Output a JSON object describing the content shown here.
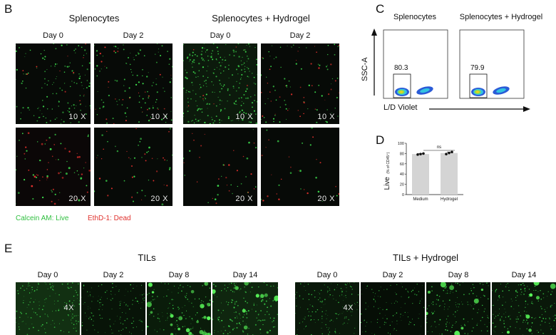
{
  "panels": {
    "B": {
      "letter": "B",
      "groups": [
        {
          "title": "Splenocytes",
          "days": [
            "Day 0",
            "Day 2"
          ]
        },
        {
          "title": "Splenocytes + Hydrogel",
          "days": [
            "Day 0",
            "Day 2"
          ]
        }
      ],
      "magnifications": [
        "10 X",
        "20 X"
      ],
      "legend": {
        "live": "Calcein AM: Live",
        "dead": "EthD-1: Dead"
      },
      "colors": {
        "live": "#2fbf3f",
        "dead": "#e0322e"
      }
    },
    "C": {
      "letter": "C",
      "titles": [
        "Splenocytes",
        "Splenocytes + Hydrogel"
      ],
      "gate_values": [
        "80.3",
        "79.9"
      ],
      "y_axis": "SSC-A",
      "x_axis": "L/D Violet"
    },
    "D": {
      "letter": "D",
      "ylabel": "Live",
      "ylabel_sub": "(% of CD45⁺)",
      "significance": "ns",
      "chart_data": {
        "type": "bar",
        "categories": [
          "Medium",
          "Hydrogel"
        ],
        "values": [
          79,
          81
        ],
        "points": [
          [
            78,
            79,
            80
          ],
          [
            79,
            81,
            83
          ]
        ],
        "ylim": [
          0,
          100
        ],
        "yticks": [
          "0",
          "20",
          "40",
          "60",
          "80",
          "100"
        ],
        "bar_color": "#d4d4d4"
      }
    },
    "E": {
      "letter": "E",
      "groups": [
        {
          "title": "TILs",
          "days": [
            "Day 0",
            "Day 2",
            "Day 8",
            "Day 14"
          ]
        },
        {
          "title": "TILs + Hydrogel",
          "days": [
            "Day 0",
            "Day 2",
            "Day 8",
            "Day 14"
          ]
        }
      ],
      "magnification": "4X"
    }
  }
}
